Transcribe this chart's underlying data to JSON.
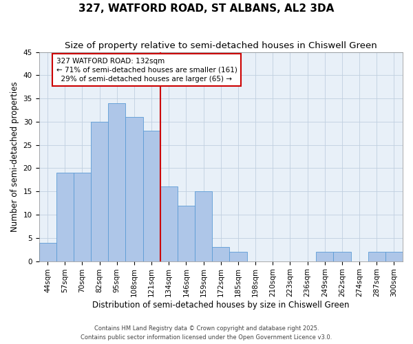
{
  "title": "327, WATFORD ROAD, ST ALBANS, AL2 3DA",
  "subtitle": "Size of property relative to semi-detached houses in Chiswell Green",
  "xlabel": "Distribution of semi-detached houses by size in Chiswell Green",
  "ylabel": "Number of semi-detached properties",
  "bin_labels": [
    "44sqm",
    "57sqm",
    "70sqm",
    "82sqm",
    "95sqm",
    "108sqm",
    "121sqm",
    "134sqm",
    "146sqm",
    "159sqm",
    "172sqm",
    "185sqm",
    "198sqm",
    "210sqm",
    "223sqm",
    "236sqm",
    "249sqm",
    "262sqm",
    "274sqm",
    "287sqm",
    "300sqm"
  ],
  "heights": [
    4,
    19,
    19,
    30,
    34,
    31,
    28,
    16,
    12,
    15,
    3,
    2,
    0,
    0,
    0,
    0,
    2,
    2,
    0,
    2,
    2
  ],
  "bar_color": "#aec6e8",
  "bar_edge_color": "#5b9bd5",
  "vline_color": "#cc0000",
  "annotation_text": "327 WATFORD ROAD: 132sqm\n← 71% of semi-detached houses are smaller (161)\n  29% of semi-detached houses are larger (65) →",
  "annotation_box_color": "#ffffff",
  "annotation_box_edge": "#cc0000",
  "ylim": [
    0,
    45
  ],
  "yticks": [
    0,
    5,
    10,
    15,
    20,
    25,
    30,
    35,
    40,
    45
  ],
  "background_color": "#e8f0f8",
  "footer1": "Contains HM Land Registry data © Crown copyright and database right 2025.",
  "footer2": "Contains public sector information licensed under the Open Government Licence v3.0.",
  "title_fontsize": 11,
  "subtitle_fontsize": 9.5,
  "tick_fontsize": 7.5,
  "label_fontsize": 8.5,
  "annotation_fontsize": 7.5
}
